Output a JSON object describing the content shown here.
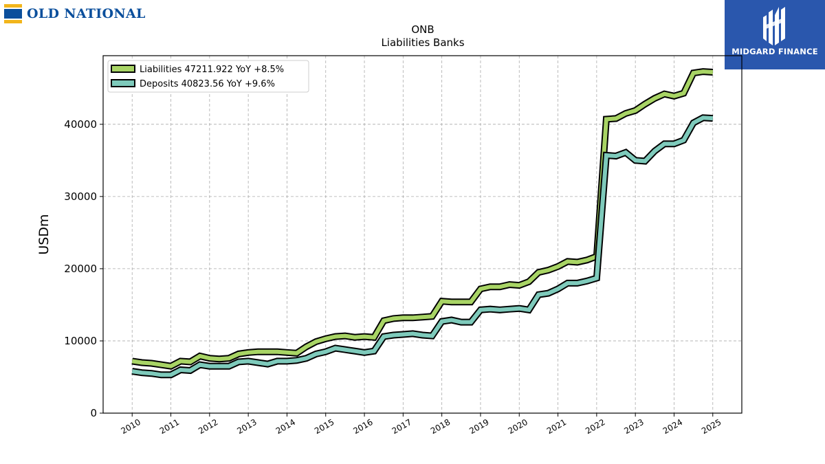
{
  "brand": {
    "left_name": "OLD NATIONAL",
    "left_mark_colors": [
      "#f2b51b",
      "#0b4f9c"
    ],
    "right_name": "MIDGARD FINANCE",
    "right_bg": "#2a57ad"
  },
  "chart_data": {
    "type": "line",
    "title": "ONB",
    "subtitle": "Liabilities Banks",
    "ylabel": "USDm",
    "xlabel": "",
    "ylim": [
      0,
      49500
    ],
    "xlim": [
      2009.25,
      2025.75
    ],
    "yticks": [
      0,
      10000,
      20000,
      30000,
      40000
    ],
    "ytick_labels": [
      "0",
      "10000",
      "20000",
      "30000",
      "40000"
    ],
    "xticks": [
      2010,
      2011,
      2012,
      2013,
      2014,
      2015,
      2016,
      2017,
      2018,
      2019,
      2020,
      2021,
      2022,
      2023,
      2024,
      2025
    ],
    "xtick_labels": [
      "2010",
      "2011",
      "2012",
      "2013",
      "2014",
      "2015",
      "2016",
      "2017",
      "2018",
      "2019",
      "2020",
      "2021",
      "2022",
      "2023",
      "2024",
      "2025"
    ],
    "grid": true,
    "legend_position": "top-left",
    "series": [
      {
        "name": "Liabilities",
        "legend_label": "Liabilities  47211.922 YoY +8.5%",
        "color": "#a8d465",
        "x": [
          2010,
          2010.25,
          2010.5,
          2010.75,
          2011,
          2011.25,
          2011.5,
          2011.75,
          2012,
          2012.25,
          2012.5,
          2012.75,
          2013,
          2013.25,
          2013.5,
          2013.75,
          2014,
          2014.25,
          2014.5,
          2014.75,
          2015,
          2015.25,
          2015.5,
          2015.75,
          2016,
          2016.25,
          2016.5,
          2016.75,
          2017,
          2017.25,
          2017.5,
          2017.75,
          2018,
          2018.25,
          2018.5,
          2018.75,
          2019,
          2019.25,
          2019.5,
          2019.75,
          2020,
          2020.25,
          2020.5,
          2020.75,
          2021,
          2021.25,
          2021.5,
          2021.75,
          2022,
          2022.25,
          2022.5,
          2022.75,
          2023,
          2023.25,
          2023.5,
          2023.75,
          2024,
          2024.25,
          2024.5,
          2024.75,
          2025
        ],
        "values": [
          7200,
          7000,
          6900,
          6700,
          6500,
          7200,
          7100,
          7900,
          7600,
          7500,
          7600,
          8200,
          8400,
          8500,
          8500,
          8500,
          8400,
          8300,
          9200,
          9900,
          10300,
          10600,
          10700,
          10500,
          10600,
          10500,
          12800,
          13100,
          13200,
          13200,
          13300,
          13400,
          15500,
          15400,
          15400,
          15400,
          17200,
          17500,
          17500,
          17800,
          17700,
          18200,
          19500,
          19800,
          20300,
          21000,
          20900,
          21200,
          21700,
          40700,
          40800,
          41500,
          41900,
          42800,
          43600,
          44200,
          43900,
          44300,
          47100,
          47300,
          47212
        ]
      },
      {
        "name": "Deposits",
        "legend_label": "Deposits  40823.56 YoY +9.6%",
        "color": "#7ecabb",
        "x": [
          2010,
          2010.25,
          2010.5,
          2010.75,
          2011,
          2011.25,
          2011.5,
          2011.75,
          2012,
          2012.25,
          2012.5,
          2012.75,
          2013,
          2013.25,
          2013.5,
          2013.75,
          2014,
          2014.25,
          2014.5,
          2014.75,
          2015,
          2015.25,
          2015.5,
          2015.75,
          2016,
          2016.25,
          2016.5,
          2016.75,
          2017,
          2017.25,
          2017.5,
          2017.75,
          2018,
          2018.25,
          2018.5,
          2018.75,
          2019,
          2019.25,
          2019.5,
          2019.75,
          2020,
          2020.25,
          2020.5,
          2020.75,
          2021,
          2021.25,
          2021.5,
          2021.75,
          2022,
          2022.25,
          2022.5,
          2022.75,
          2023,
          2023.25,
          2023.5,
          2023.75,
          2024,
          2024.25,
          2024.5,
          2024.75,
          2025
        ],
        "values": [
          5800,
          5600,
          5500,
          5300,
          5300,
          6000,
          5900,
          6700,
          6500,
          6500,
          6500,
          7100,
          7200,
          7000,
          6800,
          7200,
          7200,
          7300,
          7600,
          8200,
          8500,
          9000,
          8800,
          8600,
          8400,
          8600,
          10600,
          10800,
          10900,
          11000,
          10800,
          10700,
          12700,
          12900,
          12600,
          12600,
          14300,
          14400,
          14300,
          14400,
          14500,
          14300,
          16400,
          16600,
          17200,
          18000,
          18000,
          18300,
          18700,
          35700,
          35600,
          36100,
          35000,
          34900,
          36300,
          37300,
          37300,
          37800,
          40200,
          40900,
          40824
        ]
      }
    ]
  }
}
